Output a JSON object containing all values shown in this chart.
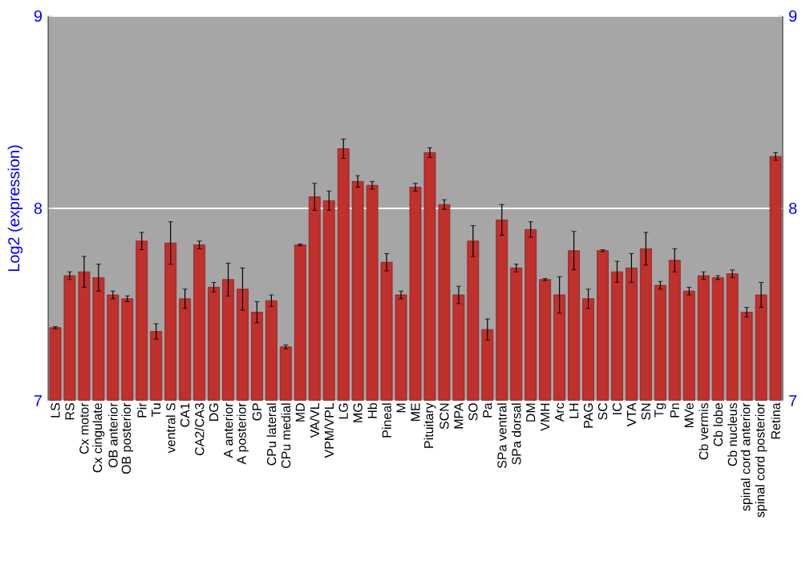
{
  "chart_data": {
    "type": "bar",
    "ylabel": "Log2 (expression)",
    "categories": [
      "LS",
      "RS",
      "Cx motor",
      "Cx cingulate",
      "OB anterior",
      "OB posterior",
      "Pir",
      "Tu",
      "ventral S",
      "CA1",
      "CA2/CA3",
      "DG",
      "A anterior",
      "A posterior",
      "GP",
      "CPu lateral",
      "CPu medial",
      "MD",
      "VA/VL",
      "VPM/VPL",
      "LG",
      "MG",
      "Hb",
      "Pineal",
      "M",
      "ME",
      "Pituitary",
      "SCN",
      "MPA",
      "SO",
      "Pa",
      "SPa ventral",
      "SPa dorsal",
      "DM",
      "VMH",
      "Arc",
      "LH",
      "PAG",
      "SC",
      "IC",
      "VTA",
      "SN",
      "Tg",
      "Pn",
      "MVe",
      "Cb vermis",
      "Cb lobe",
      "Cb nucleus",
      "spinal cord anterior",
      "spinal cord posterior",
      "Retina"
    ],
    "values": [
      7.38,
      7.65,
      7.67,
      7.64,
      7.55,
      7.53,
      7.83,
      7.36,
      7.82,
      7.53,
      7.81,
      7.59,
      7.63,
      7.58,
      7.46,
      7.52,
      7.28,
      7.81,
      8.06,
      8.04,
      8.31,
      8.14,
      8.12,
      7.72,
      7.55,
      8.11,
      8.29,
      8.02,
      7.55,
      7.83,
      7.37,
      7.94,
      7.69,
      7.89,
      7.63,
      7.55,
      7.78,
      7.53,
      7.78,
      7.67,
      7.69,
      7.79,
      7.6,
      7.73,
      7.57,
      7.65,
      7.64,
      7.66,
      7.46,
      7.55,
      8.27
    ],
    "errors": [
      0.005,
      0.02,
      0.08,
      0.07,
      0.02,
      0.015,
      0.045,
      0.04,
      0.11,
      0.05,
      0.02,
      0.025,
      0.085,
      0.11,
      0.055,
      0.03,
      0.01,
      0.005,
      0.07,
      0.05,
      0.05,
      0.03,
      0.02,
      0.045,
      0.02,
      0.02,
      0.025,
      0.025,
      0.045,
      0.08,
      0.055,
      0.08,
      0.02,
      0.04,
      0.005,
      0.095,
      0.1,
      0.05,
      0.005,
      0.055,
      0.075,
      0.085,
      0.02,
      0.06,
      0.02,
      0.02,
      0.01,
      0.02,
      0.025,
      0.065,
      0.02
    ],
    "color": "#c0302c",
    "ylim": [
      7,
      9
    ],
    "yticks": [
      7,
      8,
      9
    ],
    "y2lim": [
      7,
      9
    ],
    "y2ticks": [
      7,
      8,
      9
    ],
    "grid": "y"
  }
}
